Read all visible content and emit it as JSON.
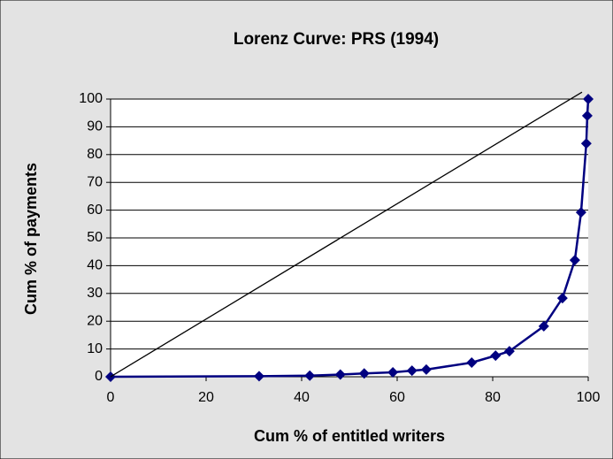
{
  "chart_data": {
    "type": "scatter",
    "title": "Lorenz Curve: PRS (1994)",
    "x_label": "Cum % of entitled writers",
    "y_label": "Cum % of payments",
    "xlim": [
      0,
      100
    ],
    "ylim": [
      0,
      100
    ],
    "xticks": [
      0,
      20,
      40,
      60,
      80,
      100
    ],
    "yticks": [
      0,
      10,
      20,
      30,
      40,
      50,
      60,
      70,
      80,
      90,
      100
    ],
    "grid": true,
    "series": [
      {
        "color": "#000080",
        "x": [
          0,
          31.1,
          41.7,
          48.1,
          53.1,
          59.1,
          63.1,
          66.1,
          75.6,
          80.6,
          83.5,
          90.7,
          94.6,
          97.2,
          98.5,
          99.6,
          99.8,
          100
        ],
        "values": [
          0,
          0.2,
          0.4,
          0.8,
          1.2,
          1.6,
          2.2,
          2.6,
          5.1,
          7.6,
          9.2,
          18.2,
          28.3,
          42,
          59.2,
          84,
          94,
          100
        ]
      },
      {
        "color": "#000000",
        "x": [
          0,
          98.7
        ],
        "values": [
          0,
          102.5
        ]
      }
    ]
  }
}
